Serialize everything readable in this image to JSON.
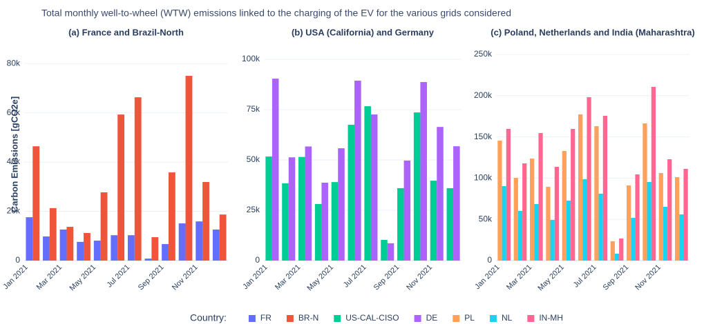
{
  "title": "Total monthly well-to-wheel (WTW) emissions linked to the charging of the EV for the various grids considered",
  "legend_title": "Country:",
  "chart_data": [
    {
      "type": "bar",
      "title": "(a) France and Brazil-North",
      "y_label": "Carbon Emissions [gCO2e]",
      "categories": [
        "Jan 2021",
        null,
        "Mar 2021",
        null,
        "May 2021",
        null,
        "Jul 2021",
        null,
        "Sep 2021",
        null,
        "Nov 2021",
        null
      ],
      "series": [
        {
          "name": "FR",
          "color": "#636efa",
          "values": [
            17600,
            9800,
            12600,
            7600,
            8100,
            10300,
            10300,
            800,
            6700,
            15100,
            15900,
            12600
          ]
        },
        {
          "name": "BR-N",
          "color": "#ef553b",
          "values": [
            46400,
            21300,
            13700,
            11200,
            27700,
            59300,
            66300,
            9500,
            35800,
            75000,
            31900,
            18700
          ]
        }
      ],
      "ylim": [
        0,
        86200
      ],
      "yticks": [
        0,
        {
          "value": 20000,
          "label": "20k"
        },
        {
          "value": 40000,
          "label": "40k"
        },
        {
          "value": 60000,
          "label": "60k"
        },
        {
          "value": 80000,
          "label": "80k"
        }
      ],
      "grid": true
    },
    {
      "type": "bar",
      "title": "(b) USA (California) and Germany",
      "categories": [
        "Jan 2021",
        null,
        "Mar 2021",
        null,
        "May 2021",
        null,
        "Jul 2021",
        null,
        "Sep 2021",
        null,
        "Nov 2021",
        null
      ],
      "series": [
        {
          "name": "US-CAL-CISO",
          "color": "#00cc96",
          "values": [
            51700,
            38400,
            51500,
            28100,
            39000,
            67500,
            76700,
            10300,
            36000,
            73600,
            39700,
            36000
          ]
        },
        {
          "name": "DE",
          "color": "#ab63fa",
          "values": [
            90400,
            51300,
            56700,
            38700,
            55800,
            89400,
            72600,
            8600,
            49700,
            88700,
            66400,
            56800
          ]
        }
      ],
      "ylim": [
        0,
        105500
      ],
      "yticks": [
        0,
        {
          "value": 25000,
          "label": "25k"
        },
        {
          "value": 50000,
          "label": "50k"
        },
        {
          "value": 75000,
          "label": "75k"
        },
        {
          "value": 100000,
          "label": "100k"
        }
      ],
      "grid": true
    },
    {
      "type": "bar",
      "title": "(c) Poland, Netherlands and India (Maharashtra)",
      "categories": [
        "Jan 2021",
        null,
        "Mar 2021",
        null,
        "May 2021",
        null,
        "Jul 2021",
        null,
        "Sep 2021",
        null,
        "Nov 2021",
        null
      ],
      "series": [
        {
          "name": "PL",
          "color": "#ffa15a",
          "values": [
            145500,
            100300,
            123700,
            89500,
            132900,
            177300,
            163000,
            23400,
            91100,
            166400,
            106200,
            101200
          ]
        },
        {
          "name": "NL",
          "color": "#19d3f3",
          "values": [
            90300,
            60200,
            68600,
            49300,
            72700,
            98700,
            81100,
            8400,
            51800,
            95300,
            65200,
            56000
          ]
        },
        {
          "name": "IN-MH",
          "color": "#ff6692",
          "values": [
            159700,
            117900,
            154700,
            113700,
            159700,
            198200,
            175600,
            26800,
            104500,
            210700,
            122900,
            111200
          ]
        }
      ],
      "ylim": [
        0,
        257500
      ],
      "yticks": [
        0,
        {
          "value": 50000,
          "label": "50k"
        },
        {
          "value": 100000,
          "label": "100k"
        },
        {
          "value": 150000,
          "label": "150k"
        },
        {
          "value": 200000,
          "label": "200k"
        },
        {
          "value": 250000,
          "label": "250k"
        }
      ],
      "grid": true
    }
  ]
}
